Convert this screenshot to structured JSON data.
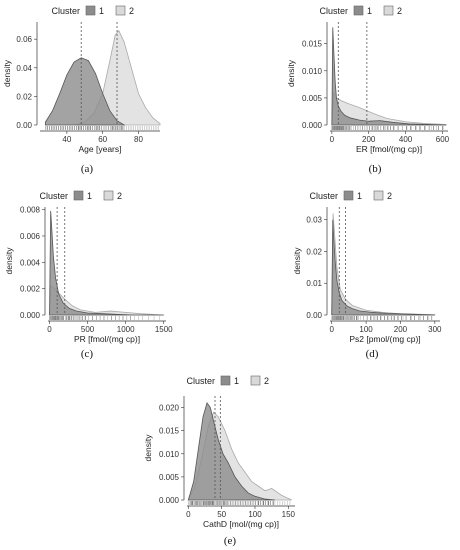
{
  "colors": {
    "cluster1": "#8c8c8c",
    "cluster2": "#d9d9d9",
    "rug": "#444444",
    "mean_line": "#555555"
  },
  "legend": {
    "title": "Cluster",
    "labels": [
      "1",
      "2"
    ]
  },
  "chart_data": [
    {
      "id": "a",
      "caption": "(a)",
      "type": "area",
      "xlabel": "Age [years]",
      "ylabel": "density",
      "xlim": [
        25,
        92
      ],
      "ylim": [
        0,
        0.072
      ],
      "xticks": [
        40,
        60,
        80
      ],
      "yticks": [
        0,
        0.02,
        0.04,
        0.06
      ],
      "ytick_labels": [
        "0.00",
        "0.02",
        "0.04",
        "0.06"
      ],
      "series": [
        {
          "name": "1",
          "x": [
            28,
            32,
            36,
            40,
            44,
            48,
            52,
            56,
            60,
            64,
            68,
            72
          ],
          "y": [
            0.002,
            0.01,
            0.022,
            0.035,
            0.044,
            0.047,
            0.045,
            0.036,
            0.022,
            0.01,
            0.003,
            0.0
          ]
        },
        {
          "name": "2",
          "x": [
            45,
            50,
            55,
            60,
            64,
            67,
            69,
            72,
            76,
            80,
            84,
            88,
            92
          ],
          "y": [
            0.0,
            0.002,
            0.008,
            0.022,
            0.045,
            0.063,
            0.066,
            0.058,
            0.04,
            0.022,
            0.012,
            0.005,
            0.001
          ]
        }
      ],
      "vlines": [
        48,
        68
      ]
    },
    {
      "id": "b",
      "caption": "(b)",
      "type": "area",
      "xlabel": "ER [fmol/(mg cp)]",
      "ylabel": "density",
      "xlim": [
        -10,
        630
      ],
      "ylim": [
        0,
        0.019
      ],
      "xticks": [
        0,
        200,
        400,
        600
      ],
      "yticks": [
        0,
        0.005,
        0.01,
        0.015
      ],
      "ytick_labels": [
        "0.000",
        "0.005",
        "0.010",
        "0.015"
      ],
      "series": [
        {
          "name": "1",
          "x": [
            0,
            5,
            10,
            18,
            25,
            35,
            50,
            70,
            100,
            150,
            200,
            260,
            330,
            420,
            520,
            620
          ],
          "y": [
            0.0,
            0.018,
            0.014,
            0.008,
            0.005,
            0.0035,
            0.0025,
            0.0018,
            0.0013,
            0.0009,
            0.0007,
            0.0008,
            0.0005,
            0.0002,
            0.0001,
            0.0
          ]
        },
        {
          "name": "2",
          "x": [
            0,
            10,
            25,
            50,
            100,
            150,
            200,
            250,
            300,
            400,
            500,
            620
          ],
          "y": [
            0.0,
            0.006,
            0.005,
            0.0045,
            0.0038,
            0.0032,
            0.0025,
            0.0018,
            0.0012,
            0.0006,
            0.0003,
            0.0001
          ]
        }
      ],
      "vlines": [
        35,
        190
      ]
    },
    {
      "id": "c",
      "caption": "(c)",
      "type": "area",
      "xlabel": "PR [fmol/(mg cp)]",
      "ylabel": "density",
      "xlim": [
        -20,
        1530
      ],
      "ylim": [
        0,
        0.0082
      ],
      "xticks": [
        0,
        500,
        1000,
        1500
      ],
      "yticks": [
        0,
        0.002,
        0.004,
        0.006,
        0.008
      ],
      "ytick_labels": [
        "0.000",
        "0.002",
        "0.004",
        "0.006",
        "0.008"
      ],
      "series": [
        {
          "name": "1",
          "x": [
            0,
            15,
            30,
            50,
            80,
            120,
            180,
            260,
            350,
            500,
            700,
            900,
            1100,
            1500
          ],
          "y": [
            0.0,
            0.0079,
            0.0065,
            0.0045,
            0.0028,
            0.0016,
            0.0009,
            0.0005,
            0.0003,
            0.00015,
            0.0001,
            5e-05,
            0.0,
            0.0
          ]
        },
        {
          "name": "2",
          "x": [
            0,
            20,
            50,
            100,
            200,
            300,
            400,
            600,
            800,
            1000,
            1200,
            1500
          ],
          "y": [
            0.0,
            0.0022,
            0.0021,
            0.0018,
            0.0012,
            0.0007,
            0.0004,
            0.0002,
            0.0003,
            0.0002,
            0.0001,
            0.0
          ]
        }
      ],
      "vlines": [
        100,
        200
      ]
    },
    {
      "id": "d",
      "caption": "(d)",
      "type": "area",
      "xlabel": "Ps2 [pmol/(mg cp)]",
      "ylabel": "density",
      "xlim": [
        -5,
        315
      ],
      "ylim": [
        0,
        0.034
      ],
      "xticks": [
        0,
        100,
        200,
        300
      ],
      "yticks": [
        0,
        0.01,
        0.02,
        0.03
      ],
      "ytick_labels": [
        "0.00",
        "0.01",
        "0.02",
        "0.03"
      ],
      "series": [
        {
          "name": "1",
          "x": [
            0,
            3,
            6,
            10,
            15,
            22,
            30,
            45,
            60,
            80,
            120,
            160,
            200,
            250,
            300
          ],
          "y": [
            0.0,
            0.03,
            0.024,
            0.017,
            0.011,
            0.007,
            0.0045,
            0.0028,
            0.002,
            0.0013,
            0.0008,
            0.0005,
            0.0004,
            0.0002,
            0.0
          ]
        },
        {
          "name": "2",
          "x": [
            0,
            4,
            8,
            15,
            25,
            40,
            60,
            100,
            150,
            200,
            300
          ],
          "y": [
            0.0,
            0.032,
            0.026,
            0.015,
            0.008,
            0.005,
            0.003,
            0.0015,
            0.0008,
            0.0004,
            0.0001
          ]
        }
      ],
      "vlines": [
        22,
        40
      ]
    },
    {
      "id": "e",
      "caption": "(e)",
      "type": "area",
      "xlabel": "CathD [mol/(mg cp)]",
      "ylabel": "density",
      "xlim": [
        -2,
        160
      ],
      "ylim": [
        0,
        0.0225
      ],
      "xticks": [
        0,
        50,
        100,
        150
      ],
      "yticks": [
        0,
        0.005,
        0.01,
        0.015,
        0.02
      ],
      "ytick_labels": [
        "0.000",
        "0.005",
        "0.010",
        "0.015",
        "0.020"
      ],
      "series": [
        {
          "name": "1",
          "x": [
            0,
            8,
            15,
            22,
            28,
            33,
            38,
            45,
            52,
            60,
            70,
            80,
            90,
            100,
            115,
            130
          ],
          "y": [
            0.0,
            0.004,
            0.011,
            0.018,
            0.021,
            0.02,
            0.017,
            0.013,
            0.01,
            0.008,
            0.005,
            0.003,
            0.0015,
            0.0008,
            0.0002,
            0.0
          ]
        },
        {
          "name": "2",
          "x": [
            0,
            10,
            20,
            30,
            38,
            45,
            55,
            65,
            75,
            85,
            95,
            105,
            115,
            125,
            140,
            155
          ],
          "y": [
            0.0,
            0.003,
            0.009,
            0.016,
            0.019,
            0.018,
            0.015,
            0.011,
            0.008,
            0.006,
            0.004,
            0.003,
            0.002,
            0.0025,
            0.001,
            0.0
          ]
        }
      ],
      "vlines": [
        40,
        48
      ]
    }
  ]
}
